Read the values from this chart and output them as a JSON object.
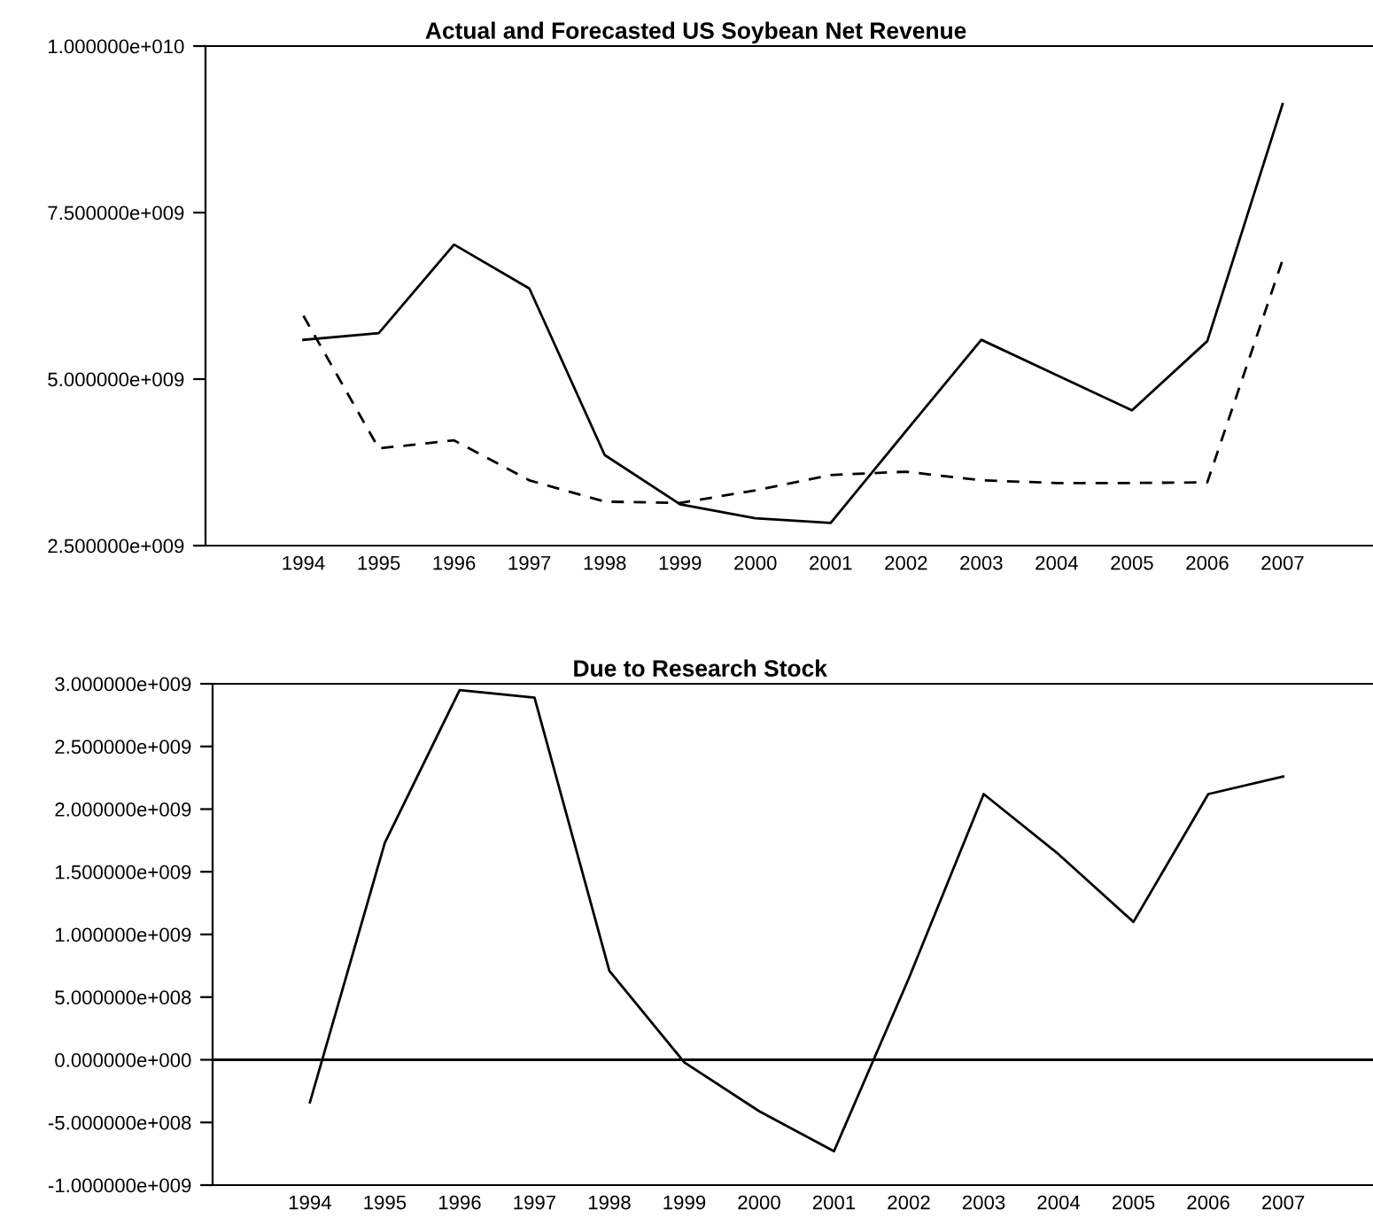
{
  "chart_data": [
    {
      "type": "line",
      "title": "Actual and Forecasted US Soybean Net Revenue",
      "x": [
        1994,
        1995,
        1996,
        1997,
        1998,
        1999,
        2000,
        2001,
        2002,
        2003,
        2004,
        2005,
        2006,
        2007
      ],
      "series": [
        {
          "color": "#000000",
          "line_style": "solid",
          "values": [
            5590000000.0,
            5690000000.0,
            7020000000.0,
            6360000000.0,
            3860000000.0,
            3120000000.0,
            2910000000.0,
            2840000000.0,
            4220000000.0,
            5590000000.0,
            5060000000.0,
            4530000000.0,
            5570000000.0,
            9130000000.0
          ]
        },
        {
          "color": "#000000",
          "line_style": "dashed",
          "values": [
            5950000000.0,
            3960000000.0,
            4080000000.0,
            3480000000.0,
            3160000000.0,
            3140000000.0,
            3330000000.0,
            3560000000.0,
            3610000000.0,
            3480000000.0,
            3440000000.0,
            3440000000.0,
            3450000000.0,
            6790000000.0
          ]
        }
      ],
      "xlim": [
        1992.7,
        2008.2
      ],
      "xticks": [
        1994,
        1995,
        1996,
        1997,
        1998,
        1999,
        2000,
        2001,
        2002,
        2003,
        2004,
        2005,
        2006,
        2007
      ],
      "ylim": [
        2500000000.0,
        10000000000.0
      ],
      "yticks": [
        {
          "value": 2500000000.0,
          "label": "2.500000e+009"
        },
        {
          "value": 5000000000.0,
          "label": "5.000000e+009"
        },
        {
          "value": 7500000000.0,
          "label": "7.500000e+009"
        },
        {
          "value": 10000000000.0,
          "label": "1.000000e+010"
        }
      ],
      "grid": false,
      "legend": false
    },
    {
      "type": "line",
      "title": "Due to Research Stock",
      "x": [
        1994,
        1995,
        1996,
        1997,
        1998,
        1999,
        2000,
        2001,
        2002,
        2003,
        2004,
        2005,
        2006,
        2007
      ],
      "series": [
        {
          "color": "#000000",
          "line_style": "solid",
          "values": [
            -340000000.0,
            1730000000.0,
            2950000000.0,
            2890000000.0,
            710000000.0,
            -20000000.0,
            -410000000.0,
            -730000000.0,
            650000000.0,
            2120000000.0,
            1640000000.0,
            1100000000.0,
            2120000000.0,
            2260000000.0
          ]
        }
      ],
      "xlim": [
        1992.7,
        2008.2
      ],
      "xticks": [
        1994,
        1995,
        1996,
        1997,
        1998,
        1999,
        2000,
        2001,
        2002,
        2003,
        2004,
        2005,
        2006,
        2007
      ],
      "ylim": [
        -1000000000.0,
        3000000000.0
      ],
      "yticks": [
        {
          "value": -1000000000.0,
          "label": "-1.000000e+009"
        },
        {
          "value": -500000000.0,
          "label": "-5.000000e+008"
        },
        {
          "value": 0,
          "label": "0.000000e+000"
        },
        {
          "value": 500000000.0,
          "label": "5.000000e+008"
        },
        {
          "value": 1000000000.0,
          "label": "1.000000e+009"
        },
        {
          "value": 1500000000.0,
          "label": "1.500000e+009"
        },
        {
          "value": 2000000000.0,
          "label": "2.000000e+009"
        },
        {
          "value": 2500000000.0,
          "label": "2.500000e+009"
        },
        {
          "value": 3000000000.0,
          "label": "3.000000e+009"
        }
      ],
      "ref_lines": [
        {
          "axis": "y",
          "value": 0,
          "color": "#000000",
          "line_style": "solid"
        }
      ],
      "grid": false,
      "legend": false
    }
  ]
}
